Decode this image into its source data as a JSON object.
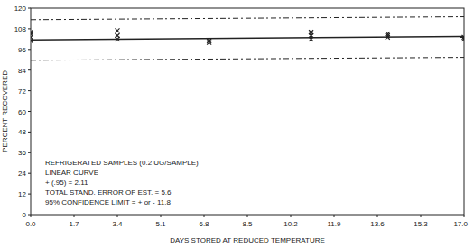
{
  "chart_data": {
    "type": "scatter",
    "xlabel": "DAYS STORED AT REDUCED TEMPERATURE",
    "ylabel": "PERCENT RECOVERED",
    "annotations": [
      "REFRIGERATED SAMPLES (0.2 UG/SAMPLE)",
      "LINEAR CURVE",
      "+ (.95) = 2.11",
      "TOTAL STAND. ERROR OF EST. = 5.6",
      "95% CONFIDENCE LIMIT = + or - 11.8"
    ],
    "xlim": [
      0,
      17
    ],
    "ylim": [
      0,
      120
    ],
    "xticks": [
      {
        "value": 0,
        "label": "0.0"
      },
      1.7,
      3.4,
      5.1,
      6.8,
      8.5,
      10.2,
      11.9,
      13.6,
      15.3,
      {
        "value": 17,
        "label": "17.0"
      }
    ],
    "yticks": [
      0,
      12,
      24,
      36,
      48,
      60,
      72,
      84,
      96,
      108,
      120
    ],
    "grid": false,
    "color": "#222222",
    "series": [
      {
        "type": "scatter",
        "marker": "x",
        "color": "#222222",
        "x": [
          0,
          0,
          0,
          0,
          3.4,
          3.4,
          3.4,
          7.0,
          7.0,
          11.0,
          11.0,
          11.0,
          14.0,
          14.0,
          14.0,
          17.0,
          17.0
        ],
        "values": [
          101,
          103,
          105,
          106,
          102,
          104,
          107,
          100,
          101,
          102,
          104,
          106,
          103,
          104,
          105,
          102,
          103
        ]
      },
      {
        "type": "line",
        "line_style": "solid",
        "color": "#222222",
        "x": [
          0,
          17
        ],
        "values": [
          101.5,
          103.5
        ]
      },
      {
        "type": "line",
        "line_style": "dashed",
        "color": "#222222",
        "x": [
          0,
          17
        ],
        "values": [
          113.3,
          115.0
        ]
      },
      {
        "type": "line",
        "line_style": "dashed",
        "color": "#222222",
        "x": [
          0,
          17
        ],
        "values": [
          89.7,
          91.4
        ]
      }
    ]
  }
}
